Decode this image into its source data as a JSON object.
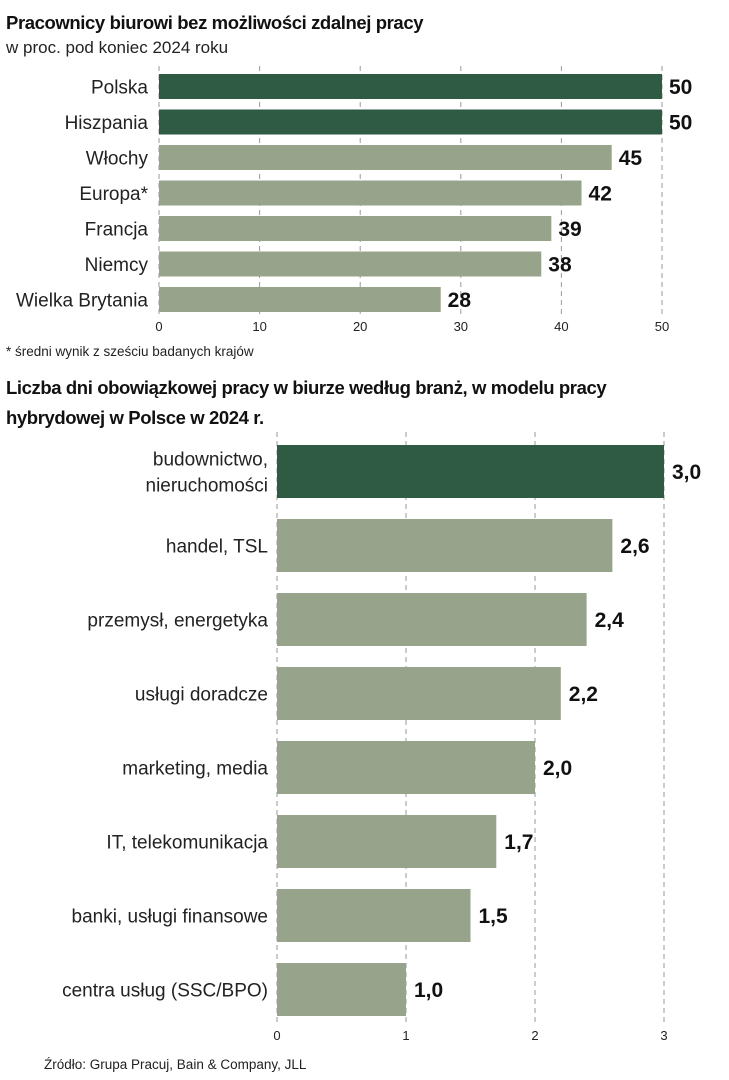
{
  "source": "Źródło: Grupa Pracuj, Bain & Company, JLL",
  "chart_data": [
    {
      "type": "bar",
      "orientation": "horizontal",
      "title": "Pracownicy biurowi bez możliwości zdalnej pracy",
      "subtitle": "w proc. pod koniec 2024 roku",
      "categories": [
        "Polska",
        "Hiszpania",
        "Włochy",
        "Europa*",
        "Francja",
        "Niemcy",
        "Wielka Brytania"
      ],
      "values": [
        50,
        50,
        45,
        42,
        39,
        38,
        28
      ],
      "value_labels": [
        "50",
        "50",
        "45",
        "42",
        "39",
        "38",
        "28"
      ],
      "ticks": [
        "0",
        "10",
        "20",
        "30",
        "40",
        "50"
      ],
      "xlim": [
        0,
        50
      ],
      "grid": true,
      "colors": [
        "#2f5a43",
        "#2f5a43",
        "#97a48b",
        "#97a48b",
        "#97a48b",
        "#97a48b",
        "#97a48b"
      ],
      "note": "* średni wynik z sześciu badanych krajów"
    },
    {
      "type": "bar",
      "orientation": "horizontal",
      "title_lines": [
        "Liczba dni obowiązkowej pracy w biurze według  branż, w modelu pracy",
        "hybrydowej w Polsce w 2024 r."
      ],
      "categories": [
        [
          "budownictwo,",
          "nieruchomości"
        ],
        [
          "handel, TSL"
        ],
        [
          "przemysł, energetyka"
        ],
        [
          "usługi doradcze"
        ],
        [
          "marketing, media"
        ],
        [
          "IT, telekomunikacja"
        ],
        [
          "banki, usługi finansowe"
        ],
        [
          "centra usług (SSC/BPO)"
        ]
      ],
      "values": [
        3.0,
        2.6,
        2.4,
        2.2,
        2.0,
        1.7,
        1.5,
        1.0
      ],
      "value_labels": [
        "3,0",
        "2,6",
        "2,4",
        "2,2",
        "2,0",
        "1,7",
        "1,5",
        "1,0"
      ],
      "ticks": [
        "0",
        "1",
        "2",
        "3"
      ],
      "xlim": [
        0,
        3
      ],
      "grid": true,
      "colors": [
        "#2f5a43",
        "#97a48b",
        "#97a48b",
        "#97a48b",
        "#97a48b",
        "#97a48b",
        "#97a48b",
        "#97a48b"
      ]
    }
  ]
}
